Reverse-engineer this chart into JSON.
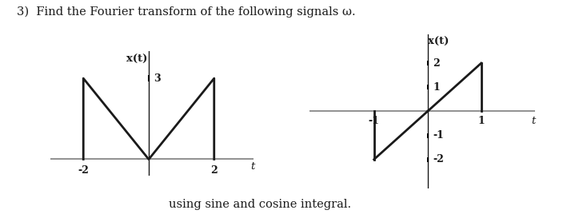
{
  "title_text": "3)  Find the Fourier transform of the following signals ω.",
  "subtitle_text": "using sine and cosine integral.",
  "graph1": {
    "xlabel": "x(t)",
    "tlabel": "t",
    "xtick_vals": [
      -2,
      2
    ],
    "xtick_labels": [
      "-2",
      "2"
    ],
    "ytick_val": 3,
    "ytick_label": "3",
    "signal_x": [
      -2,
      -2,
      0,
      2,
      2
    ],
    "signal_y": [
      0,
      3,
      0,
      3,
      0
    ],
    "xlim": [
      -3.0,
      3.2
    ],
    "ylim": [
      -0.6,
      4.0
    ]
  },
  "graph2": {
    "xlabel": "x(t)",
    "tlabel": "t",
    "xtick_vals": [
      -1,
      -1,
      1
    ],
    "xtick_labels": [
      "-1",
      "-1",
      "1"
    ],
    "ytick_vals": [
      2,
      1,
      -1,
      -2
    ],
    "ytick_labels": [
      "2",
      "1",
      "-1",
      "-2"
    ],
    "xlim": [
      -2.2,
      2.0
    ],
    "ylim": [
      -3.2,
      3.2
    ]
  },
  "line_color": "#1a1a1a",
  "axis_color": "#888888",
  "bg_color": "#ffffff",
  "font_color": "#1a1a1a",
  "title_fontsize": 10.5,
  "label_fontsize": 9.5,
  "tick_fontsize": 9.0
}
